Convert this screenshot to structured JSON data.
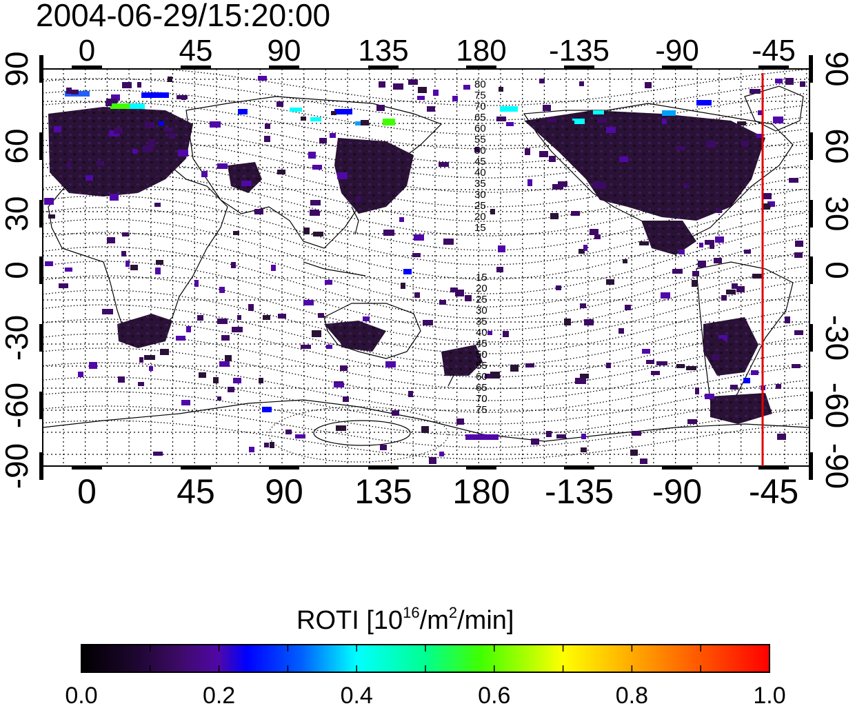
{
  "timestamp": "2004-06-29/15:20:00",
  "map": {
    "top_lon_ticks": [
      "0",
      "45",
      "90",
      "135",
      "180",
      "-135",
      "-90",
      "-45"
    ],
    "bottom_lon_ticks": [
      "0",
      "45",
      "90",
      "135",
      "180",
      "-135",
      "-90",
      "-45"
    ],
    "left_lat_ticks": [
      "90",
      "60",
      "30",
      "0",
      "-30",
      "-60",
      "-90"
    ],
    "right_lat_ticks": [
      "90",
      "60",
      "30",
      "0",
      "-30",
      "-60",
      "-90"
    ],
    "north_contour_labels": [
      "80",
      "75",
      "70",
      "65",
      "60",
      "55",
      "50",
      "45",
      "40",
      "35",
      "30",
      "25",
      "20",
      "15"
    ],
    "south_contour_labels": [
      "15",
      "20",
      "25",
      "30",
      "35",
      "40",
      "45",
      "50",
      "55",
      "60",
      "65",
      "70",
      "75"
    ],
    "terminator_line_color": "#e00000"
  },
  "colorbar": {
    "title_main": "ROTI  [10",
    "title_exp1": "16",
    "title_mid": "/m",
    "title_exp2": "2",
    "title_end": "/min]",
    "tick_labels": [
      "0.0",
      "0.2",
      "0.4",
      "0.6",
      "0.8",
      "1.0"
    ],
    "range": [
      0.0,
      1.0
    ],
    "colors": [
      "#000000",
      "#3a0a5a",
      "#5a0a9a",
      "#0000ff",
      "#00a0ff",
      "#00ffff",
      "#00ff80",
      "#40ff00",
      "#ffff00",
      "#ff8000",
      "#ff0000"
    ]
  }
}
